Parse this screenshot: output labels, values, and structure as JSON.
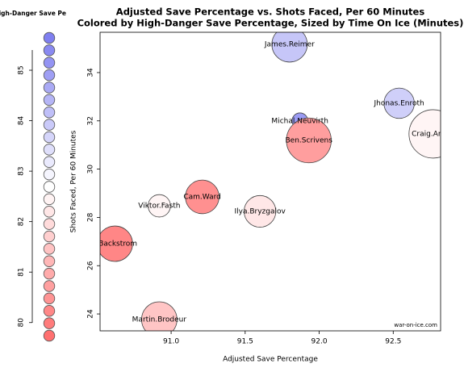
{
  "chart_data": {
    "type": "bubble",
    "title": "Adjusted Save Percentage vs. Shots Faced, Per 60 Minutes",
    "subtitle": "Colored by High-Danger Save Percentage, Sized by Time On Ice (Minutes)",
    "x_label": "Adjusted Save Percentage",
    "y_label": "Shots Faced, Per 60 Minutes",
    "watermark": "war-on-ice.com",
    "point_labels": [
      "James.Reimer",
      "Jhonas.Enroth",
      "Craig.Ander",
      "Michal.Neuvirth",
      "Ben.Scrivens",
      "Cam.Ward",
      "Viktor.Fasth",
      "Ilya.Bryzgalov",
      "s.Backstrom",
      "Martin.Brodeur"
    ],
    "x": [
      91.8,
      92.54,
      92.77,
      91.87,
      91.93,
      91.21,
      90.92,
      91.6,
      90.62,
      90.92
    ],
    "y": [
      35.17,
      32.73,
      31.46,
      32.0,
      31.19,
      28.85,
      28.48,
      28.25,
      26.91,
      23.77
    ],
    "size": [
      1500,
      1100,
      2800,
      300,
      2400,
      1350,
      600,
      1200,
      1500,
      1500
    ],
    "color_values": [
      84.0,
      83.8,
      82.5,
      85.0,
      80.7,
      80.4,
      82.5,
      82.2,
      80.2,
      81.5
    ],
    "xlim": [
      90.52,
      92.82
    ],
    "xticks": [
      {
        "value": 91.0,
        "label": "91.0"
      },
      {
        "value": 91.5,
        "label": "91.5"
      },
      {
        "value": 92.0,
        "label": "92.0"
      },
      {
        "value": 92.5,
        "label": "92.5"
      }
    ],
    "ylim": [
      23.3,
      35.67
    ],
    "yticks": [
      24,
      26,
      28,
      30,
      32,
      34
    ],
    "colorbar": {
      "title": "igh-Danger Save Pe",
      "lim": [
        79.74,
        85.64
      ],
      "ticks": [
        80,
        81,
        82,
        83,
        84,
        85
      ],
      "mid": 82.7,
      "low_color": "#ff7070",
      "mid_color": "#ffffff",
      "high_color": "#7f7ff0"
    }
  }
}
